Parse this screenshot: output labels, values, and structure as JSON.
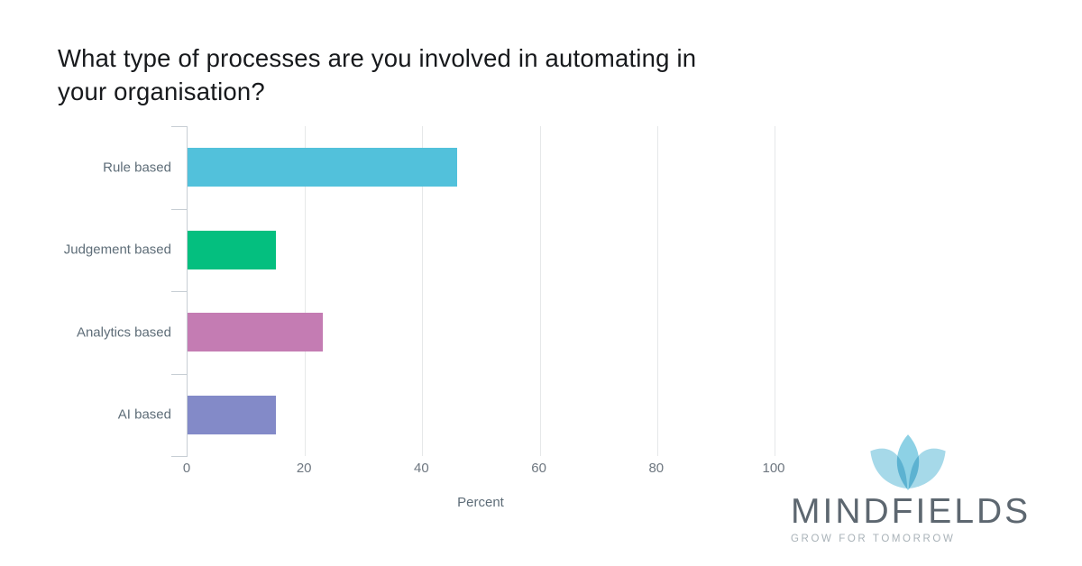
{
  "title": "What type of processes are you involved in automating in\nyour organisation?",
  "chart_data": {
    "type": "bar",
    "orientation": "horizontal",
    "title": "What type of processes are you involved in automating in your organisation?",
    "categories": [
      "Rule based",
      "Judgement based",
      "Analytics based",
      "AI based"
    ],
    "values": [
      46,
      15,
      23,
      15
    ],
    "bar_colors": [
      "#52c1db",
      "#04bf7f",
      "#c47cb3",
      "#838ac8"
    ],
    "xlabel": "Percent",
    "x_ticks": [
      0,
      20,
      40,
      60,
      80,
      100
    ],
    "xlim": [
      0,
      113
    ],
    "grid": "vertical-gridlines",
    "legend": "none"
  },
  "axis": {
    "xlabel": "Percent",
    "axis_line_color": "#c7ced4",
    "gridline_color": "#e6e8e9"
  },
  "logo": {
    "name": "MINDFIELDS",
    "tagline": "GROW FOR TOMORROW",
    "icon": "lotus-flower-icon",
    "side_petal_color": "#a6d9e9",
    "middle_petal_color": "#8dd1e5",
    "name_color": "#5d6770",
    "tagline_color": "#a9b2b8"
  }
}
